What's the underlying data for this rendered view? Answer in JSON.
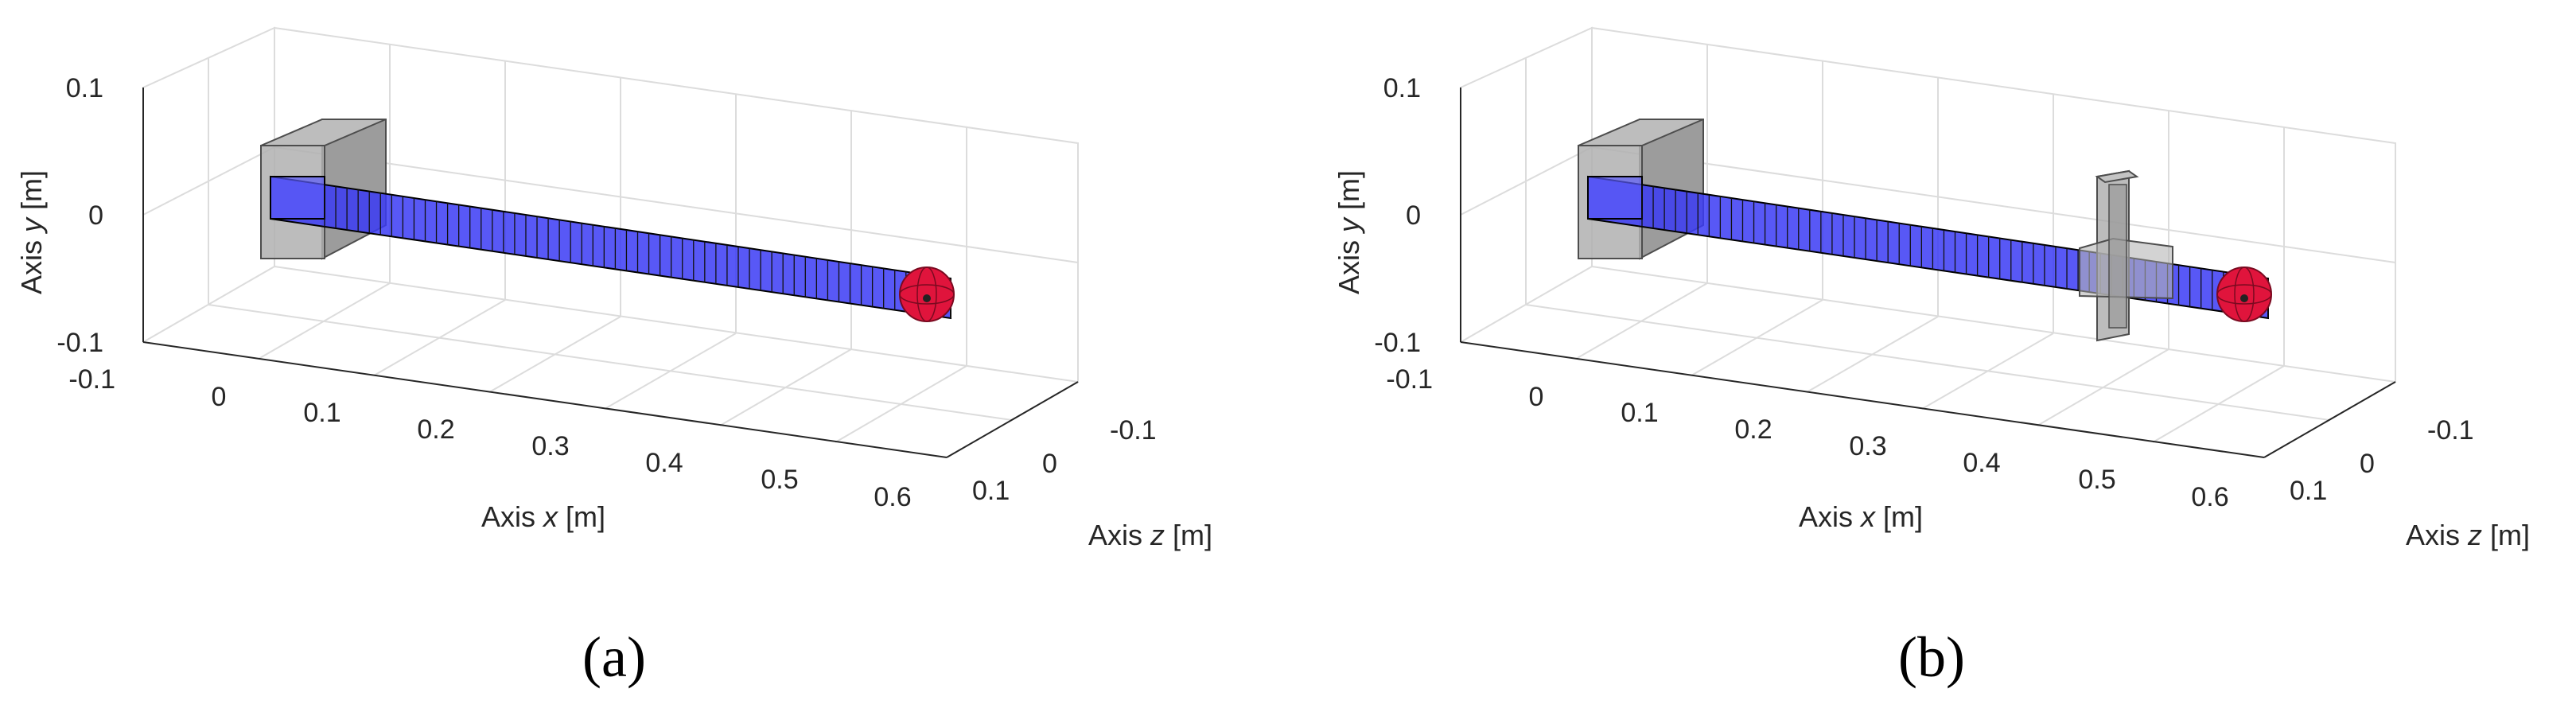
{
  "panels": [
    {
      "id": "a",
      "label": "(a)",
      "x_axis": {
        "label_prefix": "Axis ",
        "label_var": "x",
        "label_unit": "  [m]",
        "ticks": [
          "0",
          "0.1",
          "0.2",
          "0.3",
          "0.4",
          "0.5",
          "0.6"
        ]
      },
      "y_axis": {
        "label_prefix": "Axis ",
        "label_var": "y",
        "label_unit": "  [m]",
        "ticks": [
          "0.1",
          "0",
          "-0.1"
        ]
      },
      "z_axis": {
        "label_prefix": "Axis ",
        "label_var": "z",
        "label_unit": "  [m]",
        "ticks": [
          "-0.1",
          "0",
          "0.1"
        ],
        "extra_tick": "-0.1"
      },
      "has_middle_fixture": false
    },
    {
      "id": "b",
      "label": "(b)",
      "x_axis": {
        "label_prefix": "Axis ",
        "label_var": "x",
        "label_unit": "  [m]",
        "ticks": [
          "0",
          "0.1",
          "0.2",
          "0.3",
          "0.4",
          "0.5",
          "0.6"
        ]
      },
      "y_axis": {
        "label_prefix": "Axis ",
        "label_var": "y",
        "label_unit": "  [m]",
        "ticks": [
          "0.1",
          "0",
          "-0.1"
        ]
      },
      "z_axis": {
        "label_prefix": "Axis ",
        "label_var": "z",
        "label_unit": "  [m]",
        "ticks": [
          "-0.1",
          "0",
          "0.1"
        ],
        "extra_tick": "-0.1"
      },
      "has_middle_fixture": true
    }
  ],
  "colors": {
    "beam": "#3b3bf5",
    "beam_edge": "#000000",
    "fixture": "#a6a6a6",
    "tip_mass": "#e0143c",
    "grid": "#dcdcdc"
  }
}
